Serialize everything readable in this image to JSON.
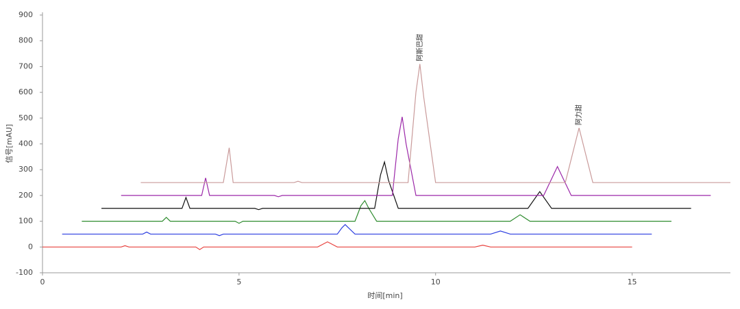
{
  "chart_data": {
    "type": "line",
    "xlabel": "时间[min]",
    "ylabel": "信号[mAU]",
    "xlim": [
      0,
      17.5
    ],
    "xticks": [
      0,
      5,
      10,
      15
    ],
    "ylim": [
      -100,
      900
    ],
    "yticks": [
      -100,
      0,
      100,
      200,
      300,
      400,
      500,
      600,
      700,
      800,
      900
    ],
    "series": [
      {
        "color": "#e8403c",
        "x": [
          0,
          2.0,
          2.1,
          2.2,
          3.9,
          4.0,
          4.1,
          7.0,
          7.15,
          7.25,
          7.35,
          7.5,
          11.0,
          11.2,
          11.4,
          15
        ],
        "values": [
          0,
          0,
          5,
          0,
          0,
          -10,
          0,
          0,
          12,
          20,
          12,
          0,
          0,
          7,
          0,
          0
        ]
      },
      {
        "color": "#2b3de0",
        "x": [
          0.5,
          2.55,
          2.65,
          2.75,
          4.4,
          4.5,
          4.6,
          7.5,
          7.62,
          7.7,
          7.78,
          7.95,
          11.4,
          11.65,
          11.9,
          15.5
        ],
        "values": [
          50,
          50,
          58,
          50,
          50,
          44,
          50,
          50,
          75,
          87,
          75,
          50,
          50,
          62,
          50,
          50
        ]
      },
      {
        "color": "#2e8b2e",
        "x": [
          1,
          3.05,
          3.15,
          3.25,
          4.9,
          5.0,
          5.1,
          7.95,
          8.1,
          8.2,
          8.3,
          8.5,
          11.9,
          12.15,
          12.4,
          16
        ],
        "values": [
          100,
          100,
          115,
          100,
          100,
          92,
          100,
          100,
          160,
          180,
          150,
          100,
          100,
          125,
          100,
          100
        ]
      },
      {
        "color": "#111111",
        "x": [
          1.5,
          3.55,
          3.65,
          3.75,
          5.4,
          5.5,
          5.6,
          8.45,
          8.6,
          8.7,
          8.8,
          9.05,
          12.35,
          12.65,
          12.95,
          16.5
        ],
        "values": [
          150,
          150,
          192,
          150,
          150,
          145,
          150,
          150,
          280,
          330,
          260,
          150,
          150,
          215,
          150,
          150
        ]
      },
      {
        "color": "#9b27a8",
        "x": [
          2,
          4.05,
          4.15,
          4.25,
          5.9,
          6.0,
          6.1,
          8.9,
          9.05,
          9.15,
          9.25,
          9.5,
          12.75,
          13.1,
          13.45,
          17
        ],
        "values": [
          200,
          200,
          268,
          200,
          200,
          195,
          200,
          200,
          420,
          505,
          400,
          200,
          200,
          312,
          200,
          200
        ]
      },
      {
        "color": "#c99a9a",
        "x": [
          2.5,
          4.6,
          4.75,
          4.85,
          6.4,
          6.5,
          6.6,
          9.3,
          9.5,
          9.6,
          9.7,
          10.0,
          13.3,
          13.65,
          14.0,
          17.5
        ],
        "values": [
          250,
          250,
          385,
          250,
          250,
          255,
          250,
          250,
          600,
          710,
          580,
          250,
          250,
          462,
          250,
          250
        ]
      }
    ],
    "annotations": [
      {
        "text": "阿斯巴甜",
        "x": 9.6,
        "y": 710
      },
      {
        "text": "阿力甜",
        "x": 13.65,
        "y": 462
      }
    ]
  }
}
